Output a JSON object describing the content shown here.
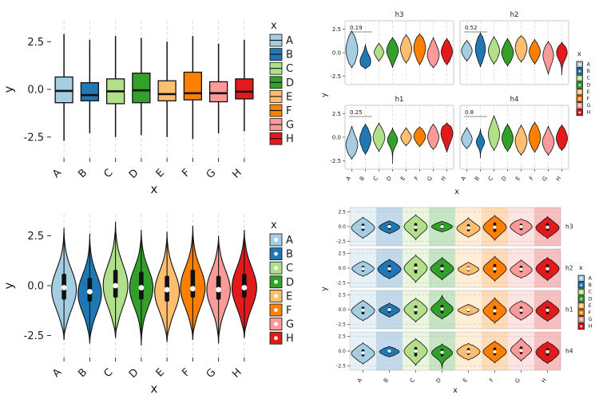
{
  "figure": {
    "background": "#ffffff",
    "palette": {
      "A": "#A6CEE3",
      "B": "#1F78B4",
      "C": "#B2DF8A",
      "D": "#33A02C",
      "E": "#FDBF6F",
      "F": "#FF7F00",
      "G": "#FB9A99",
      "H": "#E31A1C"
    }
  },
  "chart_data": [
    {
      "panel": "top-left",
      "type": "box",
      "title": "",
      "xlabel": "x",
      "ylabel": "y",
      "legend_title": "x",
      "legend_position": "right",
      "grid": "dashed-vertical",
      "categories": [
        "A",
        "B",
        "C",
        "D",
        "E",
        "F",
        "G",
        "H"
      ],
      "ylim": [
        -3.6,
        3.6
      ],
      "yticks": [
        2.5,
        0.0,
        -2.5
      ],
      "boxes": [
        {
          "x": "A",
          "lo": -2.7,
          "q1": -0.7,
          "med": -0.08,
          "q3": 0.65,
          "hi": 2.9
        },
        {
          "x": "B",
          "lo": -2.3,
          "q1": -0.6,
          "med": -0.3,
          "q3": 0.35,
          "hi": 2.6
        },
        {
          "x": "C",
          "lo": -2.5,
          "q1": -0.75,
          "med": -0.1,
          "q3": 0.55,
          "hi": 2.8
        },
        {
          "x": "D",
          "lo": -2.4,
          "q1": -0.7,
          "med": -0.05,
          "q3": 0.85,
          "hi": 2.7
        },
        {
          "x": "E",
          "lo": -2.5,
          "q1": -0.6,
          "med": -0.25,
          "q3": 0.45,
          "hi": 2.5
        },
        {
          "x": "F",
          "lo": -2.6,
          "q1": -0.55,
          "med": -0.2,
          "q3": 0.9,
          "hi": 2.8
        },
        {
          "x": "G",
          "lo": -2.3,
          "q1": -0.65,
          "med": -0.2,
          "q3": 0.4,
          "hi": 2.4
        },
        {
          "x": "H",
          "lo": -2.2,
          "q1": -0.5,
          "med": -0.12,
          "q3": 0.55,
          "hi": 2.6
        }
      ]
    },
    {
      "panel": "top-right",
      "type": "violin-facets-2x2",
      "xlabel": "x",
      "ylabel": "y",
      "legend_title": "x",
      "legend_position": "right",
      "grid": "dashed-vertical",
      "categories": [
        "A",
        "B",
        "C",
        "D",
        "E",
        "F",
        "G",
        "H"
      ],
      "ylim": [
        -3.2,
        3.2
      ],
      "yticks": [
        2.5,
        0.0,
        -2.5
      ],
      "violin_format": [
        "lo",
        "hi",
        "mode",
        "s",
        "maxw"
      ],
      "facets": [
        {
          "label": "h3",
          "annotation": "0.19",
          "violins": [
            [
              -1.6,
              2.3,
              0.3,
              1.2,
              1.0
            ],
            [
              -1.7,
              0.9,
              -0.9,
              0.7,
              0.9
            ],
            [
              -0.9,
              1.0,
              0.05,
              0.5,
              0.8
            ],
            [
              -1.6,
              1.6,
              0.2,
              0.8,
              1.0
            ],
            [
              -1.1,
              1.9,
              0.4,
              0.9,
              0.95
            ],
            [
              -1.3,
              2.0,
              0.5,
              1.0,
              1.0
            ],
            [
              -1.6,
              1.6,
              -0.2,
              0.9,
              1.0
            ],
            [
              -1.3,
              1.5,
              0.1,
              0.8,
              0.95
            ]
          ]
        },
        {
          "label": "h2",
          "annotation": "0.52",
          "violins": [
            [
              -0.9,
              1.3,
              0.2,
              0.6,
              0.9
            ],
            [
              -1.5,
              2.1,
              0.4,
              1.0,
              0.85
            ],
            [
              -1.2,
              1.7,
              0.2,
              0.8,
              0.95
            ],
            [
              -1.4,
              1.5,
              0.0,
              0.8,
              1.0
            ],
            [
              -1.0,
              1.8,
              0.5,
              0.9,
              1.0
            ],
            [
              -1.2,
              1.4,
              0.1,
              0.7,
              0.95
            ],
            [
              -2.3,
              1.2,
              -0.3,
              0.9,
              0.9
            ],
            [
              -2.4,
              1.1,
              0.0,
              0.7,
              0.9
            ]
          ]
        },
        {
          "label": "h1",
          "annotation": "0.25",
          "violins": [
            [
              -2.3,
              1.2,
              -0.8,
              0.9,
              1.0
            ],
            [
              -1.8,
              1.4,
              -0.2,
              0.9,
              0.95
            ],
            [
              -1.5,
              1.5,
              0.0,
              0.8,
              1.0
            ],
            [
              -2.8,
              1.0,
              -0.3,
              0.6,
              0.85
            ],
            [
              -0.9,
              1.0,
              0.0,
              0.5,
              0.9
            ],
            [
              -1.0,
              1.1,
              0.1,
              0.6,
              1.0
            ],
            [
              -1.3,
              1.4,
              0.0,
              0.8,
              0.95
            ],
            [
              -1.6,
              1.5,
              0.4,
              0.9,
              1.0
            ]
          ]
        },
        {
          "label": "h4",
          "annotation": "0.8",
          "violins": [
            [
              -1.2,
              1.0,
              -0.2,
              0.6,
              0.9
            ],
            [
              -2.2,
              0.9,
              -0.5,
              0.5,
              0.7
            ],
            [
              -1.4,
              2.3,
              0.3,
              1.0,
              0.95
            ],
            [
              -1.5,
              1.4,
              -0.1,
              0.8,
              0.95
            ],
            [
              -1.9,
              1.3,
              -0.4,
              0.9,
              1.0
            ],
            [
              -1.6,
              1.6,
              0.0,
              0.9,
              1.0
            ],
            [
              -1.9,
              1.2,
              -0.5,
              0.8,
              1.0
            ],
            [
              -1.4,
              1.3,
              -0.1,
              0.8,
              0.95
            ]
          ]
        }
      ]
    },
    {
      "panel": "bottom-left",
      "type": "violin",
      "xlabel": "x",
      "ylabel": "y",
      "legend_title": "x",
      "legend_position": "right",
      "grid": "dashed-vertical",
      "categories": [
        "A",
        "B",
        "C",
        "D",
        "E",
        "F",
        "G",
        "H"
      ],
      "ylim": [
        -3.6,
        3.6
      ],
      "yticks": [
        2.5,
        0.0,
        -2.5
      ],
      "violin_format": [
        "lo",
        "hi",
        "mode",
        "s",
        "maxw",
        "q1",
        "med",
        "q3"
      ],
      "violins": [
        [
          -2.7,
          2.9,
          -0.2,
          1.0,
          1.0,
          -0.7,
          -0.1,
          0.6
        ],
        [
          -2.9,
          2.6,
          -0.4,
          0.95,
          0.95,
          -0.8,
          -0.3,
          0.4
        ],
        [
          -2.6,
          3.2,
          0.0,
          1.05,
          1.0,
          -0.6,
          0.0,
          0.8
        ],
        [
          -3.0,
          2.8,
          -0.1,
          0.95,
          0.95,
          -0.7,
          -0.1,
          0.7
        ],
        [
          -2.8,
          2.7,
          -0.3,
          1.0,
          1.0,
          -0.8,
          -0.2,
          0.5
        ],
        [
          -2.7,
          3.0,
          -0.1,
          1.0,
          1.0,
          -0.6,
          -0.15,
          0.8
        ],
        [
          -2.9,
          2.5,
          -0.2,
          0.95,
          0.95,
          -0.7,
          -0.2,
          0.5
        ],
        [
          -2.6,
          2.8,
          -0.1,
          1.0,
          1.0,
          -0.6,
          -0.1,
          0.6
        ]
      ]
    },
    {
      "panel": "bottom-right",
      "type": "violin-facets-rows",
      "xlabel": "x",
      "ylabel": "y",
      "legend_title": "x",
      "legend_position": "right",
      "grid": "dashed-horizontal",
      "background_bands": true,
      "categories": [
        "A",
        "B",
        "C",
        "D",
        "E",
        "F",
        "G",
        "H"
      ],
      "ylim": [
        -3.1,
        3.1
      ],
      "yticks": [
        2.5,
        0.0,
        -2.5
      ],
      "violin_format": [
        "lo",
        "hi",
        "mode",
        "s",
        "maxw",
        "q1",
        "med",
        "q3"
      ],
      "facets": [
        {
          "label": "h3",
          "violins": [
            [
              -2.0,
              1.6,
              -0.2,
              0.9,
              1.0,
              -0.7,
              -0.1,
              0.5
            ],
            [
              -1.2,
              1.0,
              -0.1,
              0.6,
              0.9,
              -0.5,
              0.0,
              0.4
            ],
            [
              -2.2,
              2.0,
              0.0,
              1.0,
              1.0,
              -0.8,
              -0.1,
              0.6
            ],
            [
              -0.9,
              0.9,
              0.0,
              0.5,
              0.9,
              -0.4,
              0.0,
              0.4
            ],
            [
              -1.8,
              1.5,
              -0.3,
              0.8,
              1.0,
              -0.8,
              -0.2,
              0.4
            ],
            [
              -2.3,
              1.9,
              -0.1,
              1.0,
              1.0,
              -0.9,
              -0.1,
              0.7
            ],
            [
              -1.5,
              1.3,
              0.0,
              0.8,
              0.95,
              -0.6,
              0.0,
              0.5
            ],
            [
              -2.0,
              1.7,
              -0.2,
              0.9,
              1.0,
              -0.7,
              -0.1,
              0.6
            ]
          ]
        },
        {
          "label": "h2",
          "violins": [
            [
              -1.4,
              1.2,
              -0.1,
              0.7,
              0.95,
              -0.6,
              -0.1,
              0.4
            ],
            [
              -1.8,
              1.5,
              -0.2,
              0.9,
              1.0,
              -0.7,
              -0.1,
              0.5
            ],
            [
              -2.4,
              2.2,
              0.0,
              1.1,
              1.0,
              -0.9,
              0.0,
              0.8
            ],
            [
              -2.0,
              1.8,
              -0.1,
              0.9,
              1.0,
              -0.7,
              -0.1,
              0.6
            ],
            [
              -1.2,
              1.0,
              -0.2,
              0.6,
              0.9,
              -0.5,
              -0.1,
              0.3
            ],
            [
              -2.2,
              2.0,
              -0.1,
              1.0,
              1.0,
              -0.8,
              -0.1,
              0.7
            ],
            [
              -1.7,
              1.4,
              -0.3,
              0.8,
              0.95,
              -0.7,
              -0.2,
              0.4
            ],
            [
              -2.1,
              1.8,
              -0.1,
              1.0,
              1.0,
              -0.8,
              -0.1,
              0.6
            ]
          ]
        },
        {
          "label": "h1",
          "violins": [
            [
              -1.9,
              1.6,
              -0.2,
              0.9,
              1.0,
              -0.8,
              -0.1,
              0.5
            ],
            [
              -1.3,
              1.1,
              -0.1,
              0.6,
              0.9,
              -0.5,
              0.0,
              0.4
            ],
            [
              -2.1,
              1.9,
              0.0,
              1.0,
              1.0,
              -0.8,
              0.0,
              0.7
            ],
            [
              -1.6,
              2.4,
              0.1,
              0.9,
              0.95,
              -0.6,
              0.1,
              0.8
            ],
            [
              -1.0,
              0.9,
              -0.1,
              0.5,
              0.9,
              -0.4,
              0.0,
              0.3
            ],
            [
              -2.3,
              2.0,
              -0.2,
              1.0,
              1.0,
              -0.9,
              -0.2,
              0.6
            ],
            [
              -1.8,
              1.5,
              -0.1,
              0.9,
              1.0,
              -0.7,
              -0.1,
              0.5
            ],
            [
              -2.0,
              1.6,
              -0.2,
              0.9,
              1.0,
              -0.8,
              -0.1,
              0.5
            ]
          ]
        },
        {
          "label": "h4",
          "violins": [
            [
              -2.2,
              1.4,
              -0.4,
              0.9,
              1.0,
              -0.9,
              -0.3,
              0.3
            ],
            [
              -1.0,
              0.8,
              -0.1,
              0.5,
              0.85,
              -0.4,
              0.0,
              0.3
            ],
            [
              -2.4,
              2.1,
              0.0,
              1.1,
              1.0,
              -0.9,
              0.0,
              0.7
            ],
            [
              -3.0,
              1.2,
              -0.3,
              0.8,
              0.9,
              -0.9,
              -0.2,
              0.4
            ],
            [
              -1.5,
              1.3,
              -0.1,
              0.8,
              1.0,
              -0.6,
              -0.1,
              0.5
            ],
            [
              -2.0,
              1.7,
              -0.1,
              0.9,
              1.0,
              -0.7,
              -0.1,
              0.6
            ],
            [
              -1.7,
              2.2,
              0.2,
              0.9,
              0.9,
              -0.5,
              0.1,
              0.8
            ],
            [
              -2.1,
              1.6,
              -0.2,
              1.0,
              1.0,
              -0.8,
              -0.1,
              0.5
            ]
          ]
        }
      ]
    }
  ]
}
